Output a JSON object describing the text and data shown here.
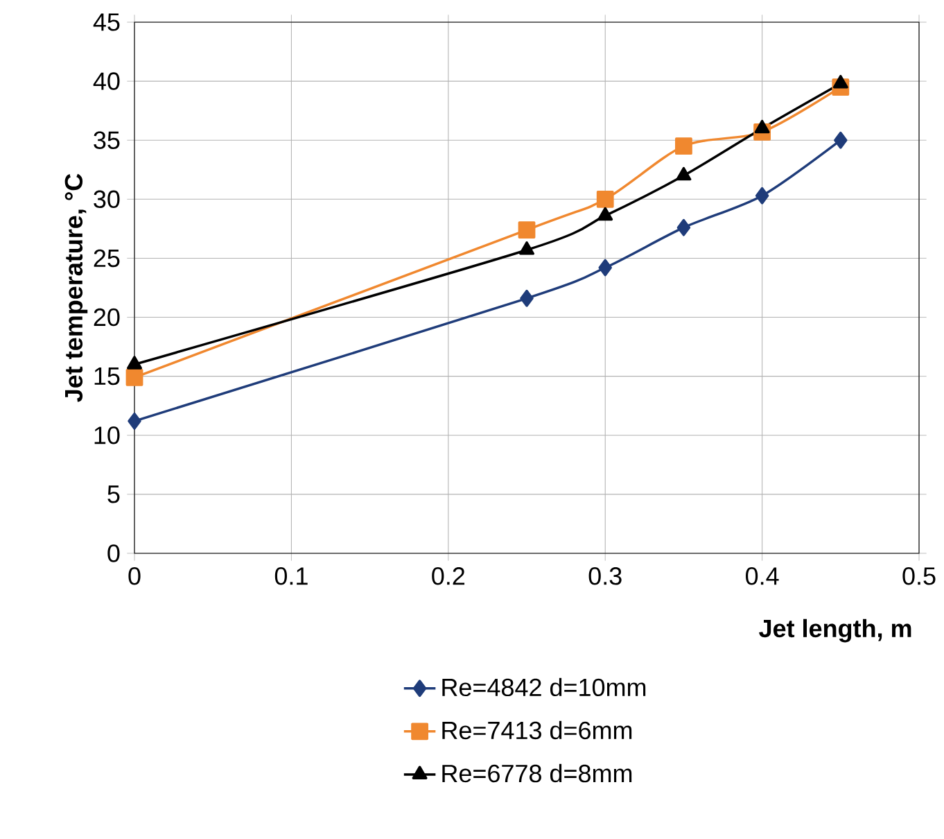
{
  "chart_data": {
    "type": "line",
    "xlabel": "Jet length, m",
    "ylabel": "Jet temperature, °C",
    "xlim": [
      0,
      0.5
    ],
    "xticks": [
      0,
      0.1,
      0.2,
      0.3,
      0.4,
      0.5
    ],
    "ylim": [
      0,
      45
    ],
    "yticks": [
      0,
      5,
      10,
      15,
      20,
      25,
      30,
      35,
      40,
      45
    ],
    "grid": true,
    "legend": "bottom",
    "line_style": "solid",
    "series": [
      {
        "name": "Re=4842  d=10mm",
        "color": "#1f3c7a",
        "marker": "diamond",
        "x": [
          0,
          0.25,
          0.3,
          0.35,
          0.4,
          0.45
        ],
        "values": [
          11.2,
          21.6,
          24.2,
          27.6,
          30.3,
          35.0
        ]
      },
      {
        "name": "Re=7413  d=6mm",
        "color": "#f0882f",
        "marker": "square",
        "x": [
          0,
          0.25,
          0.3,
          0.35,
          0.4,
          0.45
        ],
        "values": [
          14.9,
          27.4,
          30.0,
          34.5,
          35.7,
          39.5
        ]
      },
      {
        "name": "Re=6778  d=8mm",
        "color": "#000000",
        "marker": "triangle",
        "x": [
          0,
          0.25,
          0.3,
          0.35,
          0.4,
          0.45
        ],
        "values": [
          16.0,
          25.7,
          28.6,
          32.0,
          36.0,
          39.8
        ]
      }
    ]
  }
}
